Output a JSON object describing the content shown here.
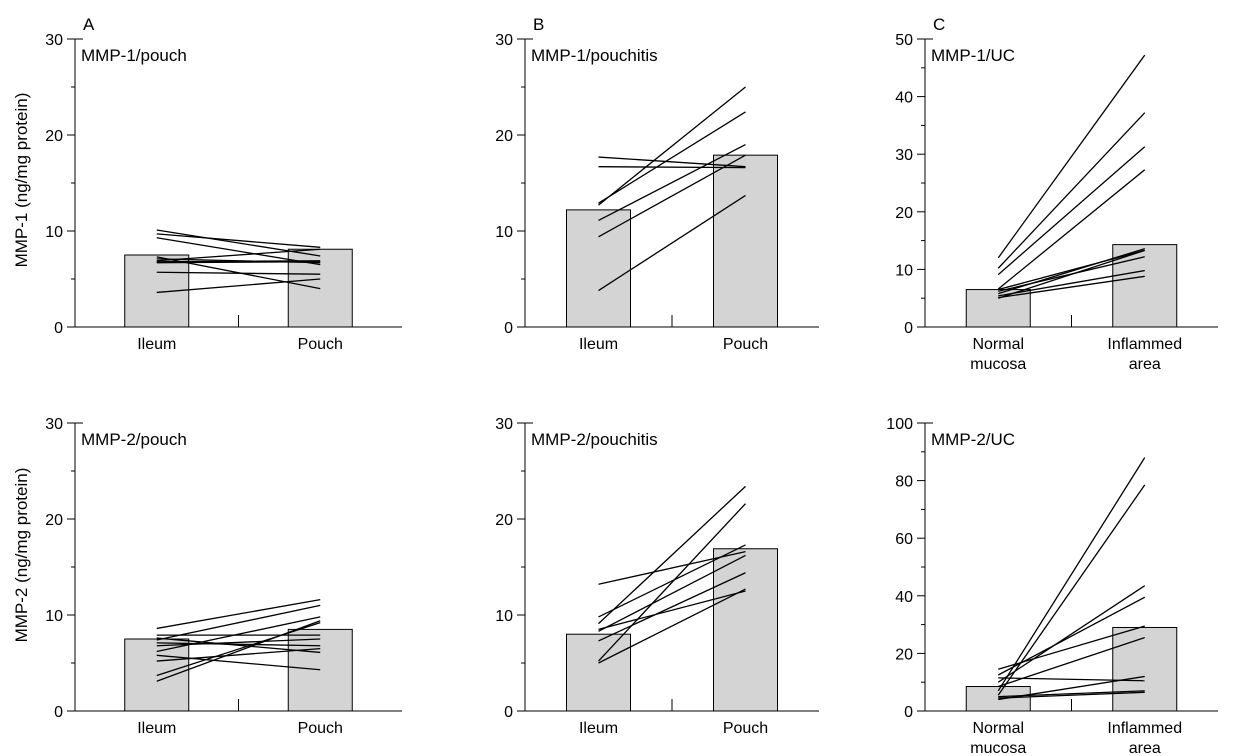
{
  "row_ylabels": [
    "MMP-1 (ng/mg protein)",
    "MMP-2 (ng/mg protein)"
  ],
  "chart_data": [
    {
      "type": "bar",
      "panel_letter": "A",
      "title": "MMP-1/pouch",
      "categories": [
        "Ileum",
        "Pouch"
      ],
      "values": [
        7.5,
        8.1
      ],
      "ylim": [
        0,
        30
      ],
      "yticks": [
        0,
        10,
        20,
        30
      ],
      "paired_lines": [
        [
          10.1,
          7.4
        ],
        [
          9.7,
          8.3
        ],
        [
          9.3,
          6.5
        ],
        [
          7.1,
          6.7
        ],
        [
          6.9,
          8.1
        ],
        [
          6.8,
          6.9
        ],
        [
          6.7,
          6.8
        ],
        [
          5.7,
          5.5
        ],
        [
          3.6,
          5.0
        ],
        [
          7.3,
          4.0
        ]
      ]
    },
    {
      "type": "bar",
      "panel_letter": "B",
      "title": "MMP-1/pouchitis",
      "categories": [
        "Ileum",
        "Pouch"
      ],
      "values": [
        12.2,
        17.9
      ],
      "ylim": [
        0,
        30
      ],
      "yticks": [
        0,
        10,
        20,
        30
      ],
      "paired_lines": [
        [
          17.7,
          16.7
        ],
        [
          16.7,
          16.6
        ],
        [
          12.9,
          22.4
        ],
        [
          12.7,
          25.0
        ],
        [
          11.1,
          19.0
        ],
        [
          9.4,
          17.9
        ],
        [
          3.8,
          13.7
        ]
      ]
    },
    {
      "type": "bar",
      "panel_letter": "C",
      "title": "MMP-1/UC",
      "categories": [
        "Normal mucosa",
        "Inflammed area"
      ],
      "category_lines": [
        [
          "Normal",
          "mucosa"
        ],
        [
          "Inflammed",
          "area"
        ]
      ],
      "values": [
        6.5,
        14.3
      ],
      "ylim": [
        0,
        50
      ],
      "yticks": [
        0,
        10,
        20,
        30,
        40,
        50
      ],
      "paired_lines": [
        [
          12.0,
          47.2
        ],
        [
          10.2,
          37.2
        ],
        [
          9.1,
          31.3
        ],
        [
          6.6,
          27.3
        ],
        [
          6.5,
          13.3
        ],
        [
          6.2,
          12.2
        ],
        [
          5.8,
          13.6
        ],
        [
          5.4,
          9.8
        ],
        [
          5.1,
          8.8
        ],
        [
          5.0,
          13.3
        ]
      ]
    },
    {
      "type": "bar",
      "title": "MMP-2/pouch",
      "categories": [
        "Ileum",
        "Pouch"
      ],
      "values": [
        7.5,
        8.5
      ],
      "ylim": [
        0,
        30
      ],
      "yticks": [
        0,
        10,
        20,
        30
      ],
      "paired_lines": [
        [
          8.6,
          11.6
        ],
        [
          7.9,
          7.9
        ],
        [
          7.4,
          11.0
        ],
        [
          7.1,
          6.8
        ],
        [
          6.8,
          7.5
        ],
        [
          6.2,
          9.8
        ],
        [
          5.8,
          4.3
        ],
        [
          5.2,
          6.5
        ],
        [
          3.7,
          9.2
        ],
        [
          3.1,
          9.4
        ],
        [
          7.6,
          6.1
        ]
      ]
    },
    {
      "type": "bar",
      "title": "MMP-2/pouchitis",
      "categories": [
        "Ileum",
        "Pouch"
      ],
      "values": [
        8.0,
        16.9
      ],
      "ylim": [
        0,
        30
      ],
      "yticks": [
        0,
        10,
        20,
        30
      ],
      "paired_lines": [
        [
          13.2,
          16.6
        ],
        [
          9.8,
          17.3
        ],
        [
          9.1,
          23.4
        ],
        [
          8.5,
          12.5
        ],
        [
          8.3,
          16.2
        ],
        [
          7.3,
          14.4
        ],
        [
          5.2,
          21.6
        ],
        [
          5.0,
          12.7
        ]
      ]
    },
    {
      "type": "bar",
      "title": "MMP-2/UC",
      "categories": [
        "Normal mucosa",
        "Inflammed area"
      ],
      "category_lines": [
        [
          "Normal",
          "mucosa"
        ],
        [
          "Inflammed",
          "area"
        ]
      ],
      "values": [
        8.5,
        29.0
      ],
      "ylim": [
        0,
        100
      ],
      "yticks": [
        0,
        20,
        40,
        60,
        80,
        100
      ],
      "paired_lines": [
        [
          14.5,
          29.5
        ],
        [
          12.5,
          39.5
        ],
        [
          11.5,
          10.5
        ],
        [
          10.0,
          43.5
        ],
        [
          8.5,
          25.5
        ],
        [
          7.0,
          88.0
        ],
        [
          5.5,
          78.5
        ],
        [
          5.0,
          7.0
        ],
        [
          4.5,
          6.5
        ],
        [
          4.0,
          12.0
        ]
      ]
    }
  ]
}
